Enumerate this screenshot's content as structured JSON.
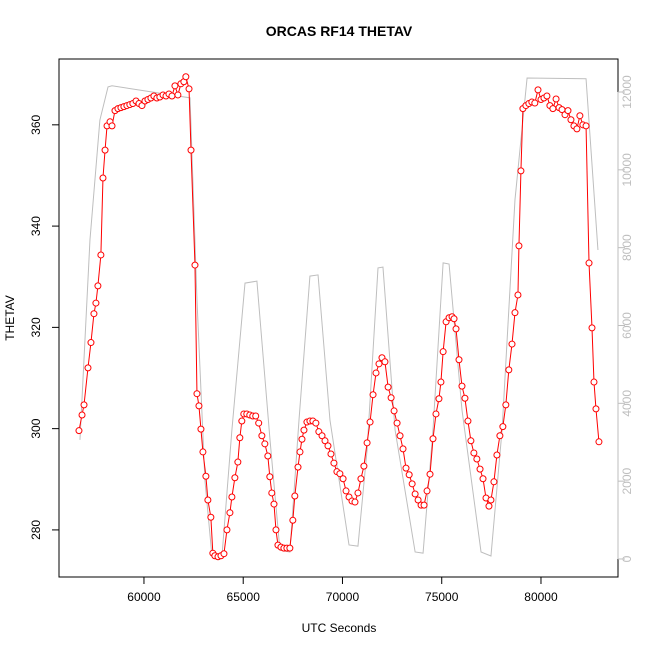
{
  "chart_data": {
    "type": "line",
    "title": "ORCAS RF14 THETAV",
    "xlabel": "UTC Seconds",
    "ylabel": "THETAV",
    "xlim": [
      55720,
      83880
    ],
    "xticks": [
      60000,
      65000,
      70000,
      75000,
      80000
    ],
    "ylim": [
      270.7,
      373.0
    ],
    "yticks": [
      280,
      300,
      320,
      340,
      360
    ],
    "y2lim": [
      -463,
      12848
    ],
    "y2ticks": [
      0,
      2000,
      4000,
      6000,
      8000,
      10000,
      12000
    ],
    "grid": false,
    "series": [
      {
        "color": "#bebebe",
        "axis": "y2",
        "marker": "none",
        "x": [
          56776,
          57280,
          57780,
          58190,
          58390,
          62320,
          62670,
          63070,
          63420,
          63930,
          64430,
          65090,
          65690,
          66350,
          66850,
          67350,
          67810,
          68360,
          68770,
          69370,
          70330,
          70780,
          71240,
          71790,
          72040,
          72650,
          73660,
          74060,
          74560,
          75070,
          75370,
          76020,
          76980,
          77480,
          78040,
          78690,
          79300,
          82270,
          82870
        ],
        "values": [
          3060,
          8200,
          11280,
          12130,
          12160,
          11850,
          6660,
          2030,
          100,
          77,
          3315,
          7090,
          7140,
          3060,
          230,
          180,
          3570,
          7270,
          7300,
          3570,
          360,
          330,
          2800,
          7480,
          7500,
          3315,
          180,
          150,
          3315,
          7610,
          7580,
          3830,
          180,
          77,
          3315,
          9230,
          12360,
          12340,
          7940
        ]
      },
      {
        "color": "#ff0000",
        "axis": "y",
        "marker": "circle",
        "x": [
          56726,
          56880,
          56980,
          57180,
          57330,
          57480,
          57580,
          57680,
          57830,
          57935,
          58040,
          58140,
          58290,
          58390,
          58540,
          58690,
          58840,
          58990,
          59140,
          59290,
          59440,
          59600,
          59750,
          59900,
          60050,
          60200,
          60350,
          60500,
          60650,
          60800,
          60960,
          61110,
          61260,
          61410,
          61560,
          61710,
          61860,
          62010,
          62110,
          62270,
          62370,
          62570,
          62670,
          62770,
          62870,
          62970,
          63120,
          63220,
          63370,
          63470,
          63570,
          63730,
          63880,
          64030,
          64180,
          64330,
          64430,
          64580,
          64730,
          64830,
          64930,
          65030,
          65180,
          65330,
          65480,
          65630,
          65780,
          65940,
          66090,
          66240,
          66340,
          66440,
          66550,
          66650,
          66750,
          66900,
          67050,
          67200,
          67350,
          67500,
          67600,
          67760,
          67860,
          67960,
          68060,
          68210,
          68360,
          68510,
          68660,
          68810,
          68970,
          69120,
          69270,
          69420,
          69570,
          69720,
          69870,
          70030,
          70180,
          70330,
          70480,
          70630,
          70780,
          70930,
          71080,
          71240,
          71390,
          71540,
          71690,
          71840,
          71990,
          72140,
          72300,
          72450,
          72600,
          72750,
          72900,
          73050,
          73200,
          73360,
          73510,
          73660,
          73810,
          73960,
          74110,
          74260,
          74410,
          74560,
          74710,
          74860,
          74960,
          75070,
          75220,
          75370,
          75520,
          75620,
          75720,
          75870,
          76020,
          76170,
          76320,
          76470,
          76620,
          76770,
          76930,
          77080,
          77230,
          77380,
          77480,
          77630,
          77780,
          77930,
          78080,
          78230,
          78380,
          78540,
          78690,
          78840,
          78890,
          78990,
          79090,
          79240,
          79390,
          79540,
          79690,
          79850,
          80000,
          80150,
          80300,
          80450,
          80600,
          80760,
          80910,
          81060,
          81210,
          81360,
          81510,
          81660,
          81810,
          81960,
          82110,
          82270,
          82420,
          82570,
          82670,
          82770,
          82920
        ],
        "values": [
          299.6,
          302.7,
          304.7,
          312,
          317,
          322.7,
          324.8,
          328.2,
          334.3,
          349.5,
          355,
          359.8,
          360.6,
          359.8,
          362.8,
          363.2,
          363.4,
          363.6,
          363.8,
          364,
          364.2,
          364.7,
          364.2,
          363.8,
          364.7,
          365,
          365.3,
          365.7,
          365.3,
          365.5,
          365.9,
          365.7,
          366.1,
          365.7,
          367.7,
          365.9,
          368.1,
          368.5,
          369.5,
          367.1,
          355,
          332.3,
          306.9,
          304.5,
          299.9,
          295.4,
          290.6,
          285.9,
          282.5,
          275.4,
          274.9,
          274.7,
          274.9,
          275.3,
          280,
          283.4,
          286.5,
          290.3,
          293.4,
          298.2,
          301.5,
          302.9,
          302.9,
          302.7,
          302.5,
          302.5,
          301.1,
          298.6,
          297,
          294.6,
          290.5,
          287.3,
          285.1,
          280,
          277,
          276.6,
          276.4,
          276.4,
          276.4,
          281.9,
          286.7,
          292.4,
          295.4,
          297.9,
          299.7,
          301.3,
          301.5,
          301.5,
          301.1,
          299.4,
          298.6,
          297.6,
          296.6,
          295,
          293.2,
          291.5,
          291.1,
          290.1,
          287.7,
          286.5,
          285.7,
          285.5,
          287.3,
          290.1,
          292.6,
          297.2,
          301.3,
          306.7,
          311,
          312.8,
          314,
          313.2,
          308.2,
          306.1,
          303.5,
          301.1,
          298.6,
          296,
          292.2,
          290.9,
          289.1,
          287.1,
          285.9,
          284.9,
          284.9,
          287.7,
          291,
          298,
          302.9,
          305.9,
          309.2,
          315.2,
          321.1,
          321.9,
          322.1,
          321.7,
          319.7,
          313.6,
          308.4,
          306,
          301.5,
          297.6,
          295.2,
          294,
          292,
          290.1,
          286.3,
          284.7,
          285.9,
          289.5,
          294.8,
          298.6,
          300.4,
          304.7,
          311.6,
          316.7,
          322.9,
          326.4,
          336.1,
          350.9,
          363.2,
          363.8,
          364.2,
          364.5,
          364.3,
          366.9,
          365,
          365.3,
          365.7,
          363.8,
          363.2,
          365.1,
          363.4,
          363,
          362,
          362.8,
          361,
          359.8,
          359.2,
          361.8,
          360,
          359.8,
          332.7,
          319.9,
          309.2,
          303.9,
          297.4
        ]
      }
    ]
  }
}
